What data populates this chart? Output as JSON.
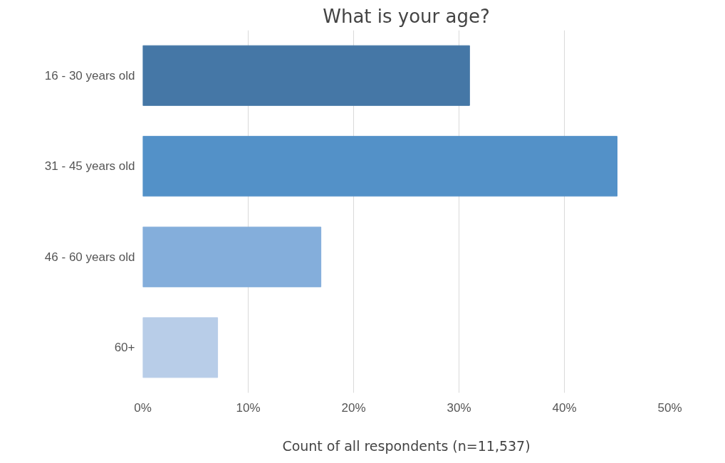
{
  "chart_data": {
    "type": "bar",
    "orientation": "horizontal",
    "title": "What is your age?",
    "xlabel": "Count of all respondents (n=11,537)",
    "categories": [
      "16 - 30 years old",
      "31 - 45 years old",
      "46 - 60 years old",
      "60+"
    ],
    "values": [
      31,
      45,
      16.9,
      7.1
    ],
    "colors": [
      "#4577a6",
      "#5391c8",
      "#84aedb",
      "#b8cde8"
    ],
    "xlim": [
      0,
      50
    ],
    "xticks": [
      {
        "value": 0,
        "label": "0%"
      },
      {
        "value": 10,
        "label": "10%"
      },
      {
        "value": 20,
        "label": "20%"
      },
      {
        "value": 30,
        "label": "30%"
      },
      {
        "value": 40,
        "label": "40%"
      },
      {
        "value": 50,
        "label": "50%"
      }
    ],
    "grid": "x"
  }
}
